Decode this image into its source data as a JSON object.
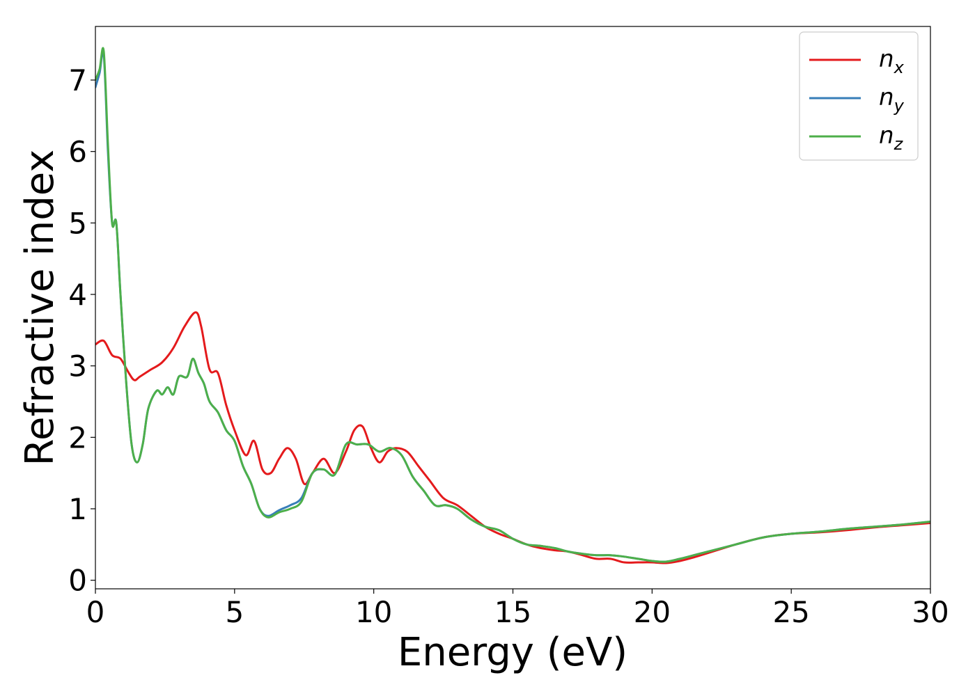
{
  "chart_data": {
    "type": "line",
    "xlabel": "Energy (eV)",
    "ylabel": "Refractive index",
    "xlim": [
      0,
      30
    ],
    "ylim": [
      -0.12,
      7.75
    ],
    "xticks": [
      "0",
      "5",
      "10",
      "15",
      "20",
      "25",
      "30"
    ],
    "yticks": [
      "0",
      "1",
      "2",
      "3",
      "4",
      "5",
      "6",
      "7"
    ],
    "grid": false,
    "legend_position": "top-right",
    "series": [
      {
        "name": "n",
        "subscript": "x",
        "color": "#e41a1c",
        "x": [
          0,
          0.3,
          0.6,
          0.9,
          1.2,
          1.4,
          1.6,
          2.0,
          2.4,
          2.8,
          3.2,
          3.6,
          3.8,
          4.1,
          4.4,
          4.7,
          5.0,
          5.4,
          5.7,
          6.0,
          6.3,
          6.6,
          6.9,
          7.2,
          7.5,
          7.8,
          8.2,
          8.6,
          9.0,
          9.3,
          9.6,
          9.9,
          10.2,
          10.5,
          10.8,
          11.2,
          11.6,
          12.0,
          12.5,
          13.0,
          13.5,
          14.0,
          14.5,
          15.0,
          15.5,
          16.0,
          16.5,
          17.0,
          17.5,
          18.0,
          18.5,
          19.0,
          19.5,
          20.0,
          20.5,
          21.0,
          21.5,
          22.0,
          23.0,
          24.0,
          25.0,
          26.0,
          27.0,
          28.0,
          29.0,
          30.0
        ],
        "values": [
          3.3,
          3.35,
          3.15,
          3.1,
          2.9,
          2.8,
          2.85,
          2.95,
          3.05,
          3.25,
          3.55,
          3.75,
          3.55,
          2.95,
          2.9,
          2.45,
          2.1,
          1.75,
          1.95,
          1.55,
          1.5,
          1.7,
          1.85,
          1.7,
          1.35,
          1.5,
          1.7,
          1.5,
          1.8,
          2.1,
          2.15,
          1.85,
          1.65,
          1.8,
          1.85,
          1.8,
          1.6,
          1.4,
          1.15,
          1.05,
          0.9,
          0.75,
          0.65,
          0.58,
          0.5,
          0.45,
          0.42,
          0.4,
          0.35,
          0.3,
          0.3,
          0.25,
          0.25,
          0.25,
          0.24,
          0.27,
          0.32,
          0.38,
          0.5,
          0.6,
          0.65,
          0.67,
          0.7,
          0.74,
          0.77,
          0.8
        ]
      },
      {
        "name": "n",
        "subscript": "y",
        "color": "#377eb8",
        "x": [
          0,
          0.15,
          0.3,
          0.45,
          0.6,
          0.75,
          0.9,
          1.1,
          1.3,
          1.5,
          1.7,
          1.9,
          2.2,
          2.4,
          2.6,
          2.8,
          3.0,
          3.3,
          3.5,
          3.7,
          3.9,
          4.1,
          4.4,
          4.7,
          5.0,
          5.3,
          5.6,
          5.9,
          6.2,
          6.6,
          7.0,
          7.4,
          7.8,
          8.2,
          8.6,
          9.0,
          9.4,
          9.8,
          10.2,
          10.6,
          11.0,
          11.4,
          11.8,
          12.2,
          12.6,
          13.0,
          13.5,
          14.0,
          14.5,
          15.0,
          15.5,
          16.0,
          16.5,
          17.0,
          17.5,
          18.0,
          18.5,
          19.0,
          19.5,
          20.0,
          20.5,
          21.0,
          21.5,
          22.0,
          23.0,
          24.0,
          25.0,
          26.0,
          27.0,
          28.0,
          29.0,
          30.0
        ],
        "values": [
          6.9,
          7.1,
          7.35,
          6.0,
          5.0,
          5.0,
          4.0,
          2.8,
          1.9,
          1.65,
          1.9,
          2.4,
          2.65,
          2.6,
          2.7,
          2.6,
          2.85,
          2.85,
          3.1,
          2.9,
          2.75,
          2.5,
          2.35,
          2.1,
          1.95,
          1.6,
          1.35,
          1.0,
          0.9,
          0.98,
          1.05,
          1.15,
          1.5,
          1.55,
          1.48,
          1.9,
          1.9,
          1.9,
          1.8,
          1.85,
          1.75,
          1.45,
          1.25,
          1.05,
          1.05,
          1.0,
          0.85,
          0.75,
          0.7,
          0.58,
          0.5,
          0.48,
          0.45,
          0.4,
          0.37,
          0.35,
          0.35,
          0.33,
          0.3,
          0.27,
          0.26,
          0.3,
          0.35,
          0.4,
          0.5,
          0.6,
          0.65,
          0.68,
          0.72,
          0.75,
          0.78,
          0.82
        ]
      },
      {
        "name": "n",
        "subscript": "z",
        "color": "#4daf4a",
        "x": [
          0,
          0.15,
          0.3,
          0.45,
          0.6,
          0.75,
          0.9,
          1.1,
          1.3,
          1.5,
          1.7,
          1.9,
          2.2,
          2.4,
          2.6,
          2.8,
          3.0,
          3.3,
          3.5,
          3.7,
          3.9,
          4.1,
          4.4,
          4.7,
          5.0,
          5.3,
          5.6,
          5.9,
          6.2,
          6.6,
          7.0,
          7.4,
          7.8,
          8.2,
          8.6,
          9.0,
          9.4,
          9.8,
          10.2,
          10.6,
          11.0,
          11.4,
          11.8,
          12.2,
          12.6,
          13.0,
          13.5,
          14.0,
          14.5,
          15.0,
          15.5,
          16.0,
          16.5,
          17.0,
          17.5,
          18.0,
          18.5,
          19.0,
          19.5,
          20.0,
          20.5,
          21.0,
          21.5,
          22.0,
          23.0,
          24.0,
          25.0,
          26.0,
          27.0,
          28.0,
          29.0,
          30.0
        ],
        "values": [
          7.0,
          7.15,
          7.4,
          6.1,
          5.0,
          5.0,
          4.0,
          2.8,
          1.9,
          1.65,
          1.9,
          2.4,
          2.65,
          2.6,
          2.7,
          2.6,
          2.85,
          2.85,
          3.1,
          2.9,
          2.75,
          2.5,
          2.35,
          2.1,
          1.95,
          1.6,
          1.35,
          1.0,
          0.88,
          0.95,
          1.0,
          1.1,
          1.5,
          1.55,
          1.48,
          1.9,
          1.9,
          1.9,
          1.8,
          1.85,
          1.75,
          1.45,
          1.25,
          1.05,
          1.05,
          1.0,
          0.85,
          0.75,
          0.7,
          0.58,
          0.5,
          0.48,
          0.45,
          0.4,
          0.37,
          0.35,
          0.35,
          0.33,
          0.3,
          0.27,
          0.26,
          0.3,
          0.35,
          0.4,
          0.5,
          0.6,
          0.65,
          0.68,
          0.72,
          0.75,
          0.78,
          0.82
        ]
      }
    ]
  }
}
